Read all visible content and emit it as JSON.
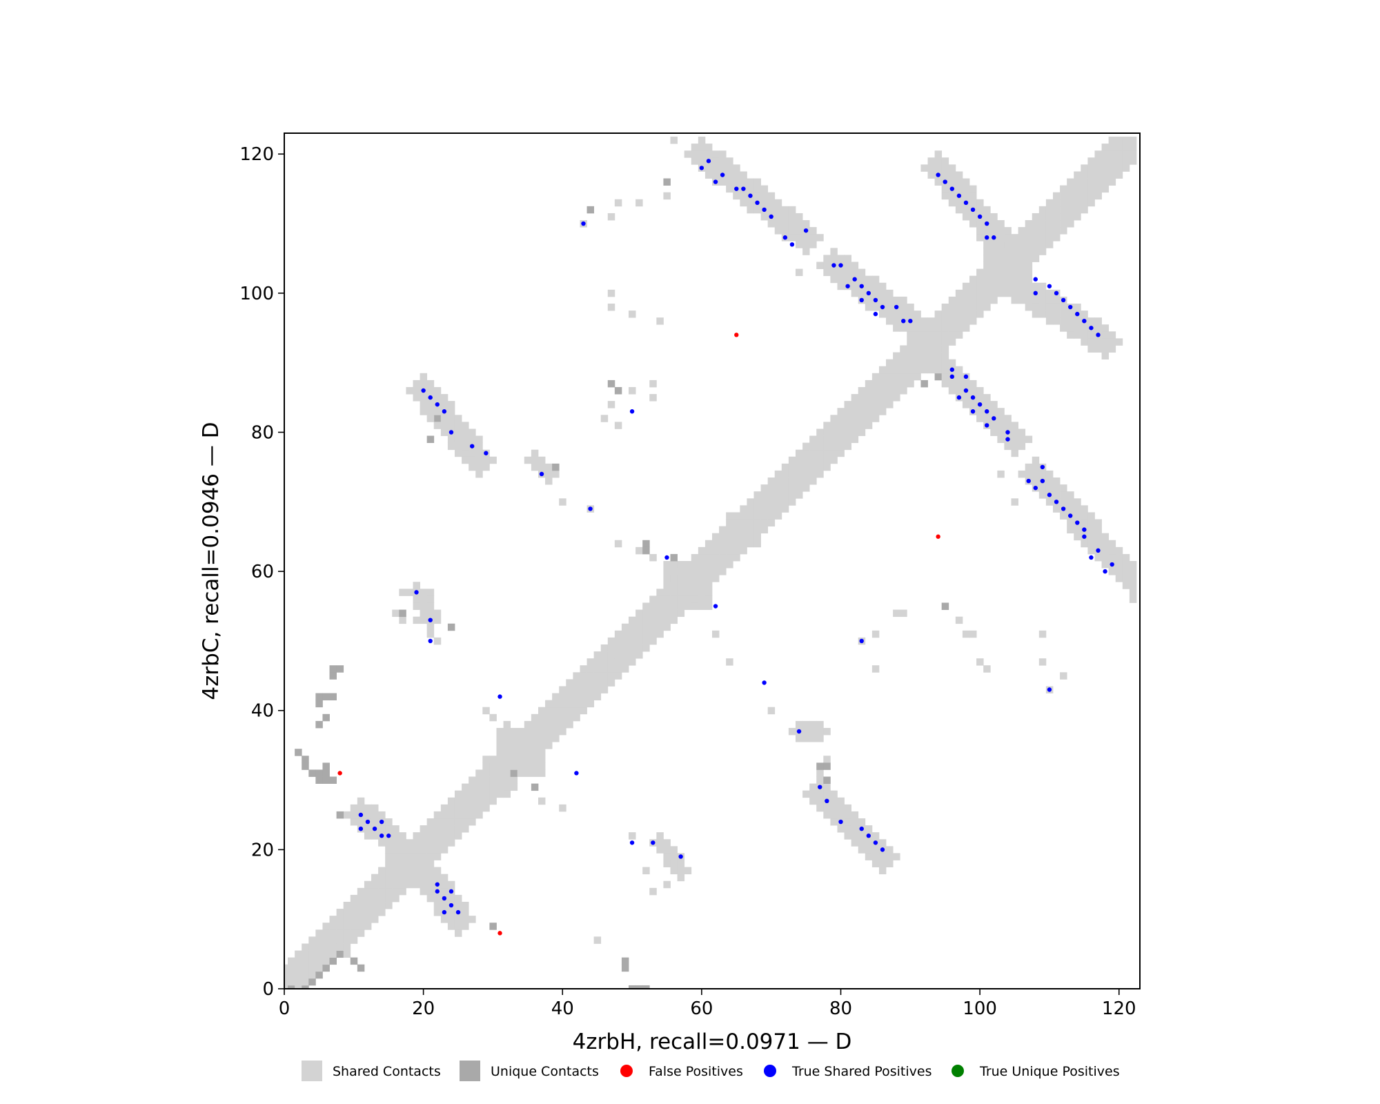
{
  "chart_data": {
    "type": "heatmap",
    "subtype": "protein contact map",
    "xlabel": "4zrbH, recall=0.0971 — D",
    "ylabel": "4zrbC, recall=0.0946 — D",
    "xlim": [
      0,
      123
    ],
    "ylim": [
      0,
      123
    ],
    "xticks": [
      0,
      20,
      40,
      60,
      80,
      100,
      120
    ],
    "yticks": [
      0,
      20,
      40,
      60,
      80,
      100,
      120
    ],
    "legend_position": "bottom",
    "colors": {
      "shared": "#d3d3d3",
      "unique": "#a9a9a9",
      "false_positive": "#ff0000",
      "true_shared": "#0000ff",
      "true_unique": "#008000"
    },
    "legend": [
      {
        "label": "Shared Contacts",
        "marker": "square",
        "color": "#d3d3d3"
      },
      {
        "label": "Unique Contacts",
        "marker": "square",
        "color": "#a9a9a9"
      },
      {
        "label": "False Positives",
        "marker": "circle",
        "color": "#ff0000"
      },
      {
        "label": "True Shared Positives",
        "marker": "circle",
        "color": "#0000ff"
      },
      {
        "label": "True Unique Positives",
        "marker": "circle",
        "color": "#008000"
      }
    ],
    "diagonal_band": {
      "from": 0,
      "to": 122,
      "half_width": 3
    },
    "shared_blobs": [
      [
        34,
        34,
        3
      ],
      [
        18,
        18,
        3
      ],
      [
        31,
        31,
        2
      ],
      [
        58,
        58,
        3
      ],
      [
        104,
        104,
        3
      ],
      [
        93,
        93,
        2
      ],
      [
        66,
        66,
        2
      ]
    ],
    "shared_segments": [
      [
        [
          60,
          120
        ],
        [
          75,
          108
        ],
        2
      ],
      [
        [
          94,
          118
        ],
        [
          104,
          106
        ],
        2
      ],
      [
        [
          79,
          104
        ],
        [
          90,
          96
        ],
        2
      ],
      [
        [
          104,
          102
        ],
        [
          118,
          93
        ],
        2
      ],
      [
        [
          95,
          89
        ],
        [
          105,
          79
        ],
        2
      ],
      [
        [
          108,
          74
        ],
        [
          122,
          59
        ],
        2
      ],
      [
        [
          77,
          28
        ],
        [
          86,
          19
        ],
        2
      ],
      [
        [
          20,
          86
        ],
        [
          28,
          76
        ],
        2
      ],
      [
        [
          11,
          25
        ],
        [
          15,
          22
        ],
        2
      ],
      [
        [
          21,
          16
        ],
        [
          25,
          10
        ],
        2
      ],
      [
        [
          74,
          37
        ],
        [
          77,
          37
        ],
        1
      ],
      [
        [
          19,
          57
        ],
        [
          21,
          53
        ],
        1
      ],
      [
        [
          36,
          76
        ],
        [
          38,
          74
        ],
        1
      ],
      [
        [
          54,
          21
        ],
        [
          57,
          17
        ],
        1
      ]
    ],
    "shared_cells": [
      [
        56,
        122
      ],
      [
        43,
        110
      ],
      [
        44,
        112
      ],
      [
        47,
        111
      ],
      [
        48,
        113
      ],
      [
        51,
        113
      ],
      [
        55,
        114
      ],
      [
        75,
        110
      ],
      [
        74,
        103
      ],
      [
        47,
        100
      ],
      [
        47,
        98
      ],
      [
        50,
        97
      ],
      [
        54,
        96
      ],
      [
        47,
        84
      ],
      [
        50,
        86
      ],
      [
        53,
        85
      ],
      [
        53,
        87
      ],
      [
        46,
        82
      ],
      [
        48,
        81
      ],
      [
        29,
        77
      ],
      [
        40,
        70
      ],
      [
        44,
        69
      ],
      [
        48,
        64
      ],
      [
        51,
        63
      ],
      [
        53,
        62
      ],
      [
        17,
        57
      ],
      [
        18,
        57
      ],
      [
        21,
        57
      ],
      [
        16,
        54
      ],
      [
        17,
        53
      ],
      [
        19,
        53
      ],
      [
        20,
        54
      ],
      [
        21,
        51
      ],
      [
        22,
        50
      ],
      [
        62,
        51
      ],
      [
        64,
        47
      ],
      [
        70,
        40
      ],
      [
        75,
        37
      ],
      [
        76,
        36
      ],
      [
        78,
        26
      ],
      [
        80,
        25
      ],
      [
        77,
        31
      ],
      [
        78,
        33
      ],
      [
        83,
        50
      ],
      [
        85,
        51
      ],
      [
        85,
        46
      ],
      [
        88,
        54
      ],
      [
        89,
        54
      ],
      [
        97,
        53
      ],
      [
        98,
        51
      ],
      [
        99,
        51
      ],
      [
        100,
        47
      ],
      [
        101,
        46
      ],
      [
        109,
        51
      ],
      [
        109,
        47
      ],
      [
        112,
        45
      ],
      [
        110,
        43
      ],
      [
        103,
        74
      ],
      [
        105,
        70
      ],
      [
        95,
        55
      ],
      [
        122,
        56
      ],
      [
        50,
        22
      ],
      [
        52,
        17
      ],
      [
        53,
        14
      ],
      [
        55,
        15
      ],
      [
        56,
        18
      ],
      [
        57,
        16
      ],
      [
        45,
        7
      ],
      [
        29,
        40
      ],
      [
        32,
        28
      ],
      [
        37,
        27
      ],
      [
        40,
        26
      ],
      [
        5,
        3
      ],
      [
        6,
        3
      ],
      [
        7,
        5
      ],
      [
        9,
        5
      ],
      [
        32,
        38
      ],
      [
        30,
        39
      ]
    ],
    "unique_cells": [
      [
        2,
        34
      ],
      [
        3,
        33
      ],
      [
        3,
        32
      ],
      [
        4,
        31
      ],
      [
        5,
        30
      ],
      [
        5,
        31
      ],
      [
        6,
        30
      ],
      [
        6,
        31
      ],
      [
        7,
        30
      ],
      [
        6,
        32
      ],
      [
        5,
        41
      ],
      [
        5,
        42
      ],
      [
        6,
        42
      ],
      [
        7,
        42
      ],
      [
        5,
        38
      ],
      [
        6,
        39
      ],
      [
        7,
        46
      ],
      [
        8,
        46
      ],
      [
        7,
        45
      ],
      [
        8,
        25
      ],
      [
        1,
        0
      ],
      [
        3,
        0
      ],
      [
        4,
        1
      ],
      [
        5,
        2
      ],
      [
        6,
        3
      ],
      [
        7,
        4
      ],
      [
        8,
        5
      ],
      [
        10,
        4
      ],
      [
        11,
        3
      ],
      [
        22,
        82
      ],
      [
        21,
        79
      ],
      [
        17,
        54
      ],
      [
        24,
        52
      ],
      [
        39,
        75
      ],
      [
        47,
        87
      ],
      [
        48,
        86
      ],
      [
        44,
        112
      ],
      [
        55,
        116
      ],
      [
        52,
        64
      ],
      [
        52,
        63
      ],
      [
        56,
        62
      ],
      [
        95,
        55
      ],
      [
        94,
        88
      ],
      [
        92,
        87
      ],
      [
        77,
        32
      ],
      [
        78,
        32
      ],
      [
        78,
        30
      ],
      [
        36,
        29
      ],
      [
        33,
        31
      ],
      [
        30,
        9
      ],
      [
        49,
        4
      ],
      [
        49,
        3
      ],
      [
        51,
        0
      ],
      [
        52,
        0
      ],
      [
        50,
        0
      ]
    ],
    "true_shared_positives": [
      [
        60,
        118
      ],
      [
        61,
        119
      ],
      [
        62,
        116
      ],
      [
        63,
        117
      ],
      [
        65,
        115
      ],
      [
        66,
        115
      ],
      [
        67,
        114
      ],
      [
        68,
        113
      ],
      [
        69,
        112
      ],
      [
        70,
        111
      ],
      [
        72,
        108
      ],
      [
        73,
        107
      ],
      [
        75,
        109
      ],
      [
        43,
        110
      ],
      [
        94,
        117
      ],
      [
        95,
        116
      ],
      [
        96,
        115
      ],
      [
        97,
        114
      ],
      [
        98,
        113
      ],
      [
        99,
        112
      ],
      [
        100,
        111
      ],
      [
        101,
        110
      ],
      [
        101,
        108
      ],
      [
        102,
        108
      ],
      [
        79,
        104
      ],
      [
        80,
        104
      ],
      [
        81,
        101
      ],
      [
        82,
        102
      ],
      [
        83,
        99
      ],
      [
        83,
        101
      ],
      [
        84,
        100
      ],
      [
        85,
        97
      ],
      [
        85,
        99
      ],
      [
        86,
        98
      ],
      [
        88,
        98
      ],
      [
        89,
        96
      ],
      [
        90,
        96
      ],
      [
        108,
        102
      ],
      [
        108,
        100
      ],
      [
        110,
        101
      ],
      [
        111,
        100
      ],
      [
        112,
        99
      ],
      [
        113,
        98
      ],
      [
        114,
        97
      ],
      [
        115,
        96
      ],
      [
        116,
        95
      ],
      [
        117,
        94
      ],
      [
        96,
        89
      ],
      [
        96,
        88
      ],
      [
        98,
        88
      ],
      [
        97,
        85
      ],
      [
        98,
        86
      ],
      [
        99,
        85
      ],
      [
        99,
        83
      ],
      [
        100,
        84
      ],
      [
        101,
        83
      ],
      [
        101,
        81
      ],
      [
        102,
        82
      ],
      [
        104,
        80
      ],
      [
        104,
        79
      ],
      [
        107,
        73
      ],
      [
        108,
        72
      ],
      [
        109,
        75
      ],
      [
        109,
        73
      ],
      [
        110,
        71
      ],
      [
        111,
        70
      ],
      [
        112,
        69
      ],
      [
        113,
        68
      ],
      [
        114,
        67
      ],
      [
        115,
        66
      ],
      [
        115,
        65
      ],
      [
        116,
        62
      ],
      [
        117,
        63
      ],
      [
        118,
        60
      ],
      [
        119,
        61
      ],
      [
        20,
        86
      ],
      [
        21,
        85
      ],
      [
        22,
        84
      ],
      [
        23,
        83
      ],
      [
        24,
        80
      ],
      [
        27,
        78
      ],
      [
        29,
        77
      ],
      [
        37,
        74
      ],
      [
        44,
        69
      ],
      [
        50,
        83
      ],
      [
        55,
        62
      ],
      [
        62,
        55
      ],
      [
        19,
        57
      ],
      [
        21,
        53
      ],
      [
        21,
        50
      ],
      [
        69,
        44
      ],
      [
        110,
        43
      ],
      [
        83,
        50
      ],
      [
        31,
        42
      ],
      [
        42,
        31
      ],
      [
        74,
        37
      ],
      [
        77,
        29
      ],
      [
        78,
        27
      ],
      [
        80,
        24
      ],
      [
        83,
        23
      ],
      [
        84,
        22
      ],
      [
        85,
        21
      ],
      [
        86,
        20
      ],
      [
        11,
        25
      ],
      [
        11,
        23
      ],
      [
        12,
        24
      ],
      [
        13,
        23
      ],
      [
        14,
        24
      ],
      [
        14,
        22
      ],
      [
        15,
        22
      ],
      [
        22,
        15
      ],
      [
        22,
        14
      ],
      [
        23,
        13
      ],
      [
        24,
        14
      ],
      [
        24,
        12
      ],
      [
        23,
        11
      ],
      [
        25,
        11
      ],
      [
        50,
        21
      ],
      [
        53,
        21
      ],
      [
        57,
        19
      ]
    ],
    "false_positives": [
      [
        65,
        94
      ],
      [
        94,
        65
      ],
      [
        8,
        31
      ],
      [
        31,
        8
      ]
    ],
    "true_unique_positives": []
  }
}
